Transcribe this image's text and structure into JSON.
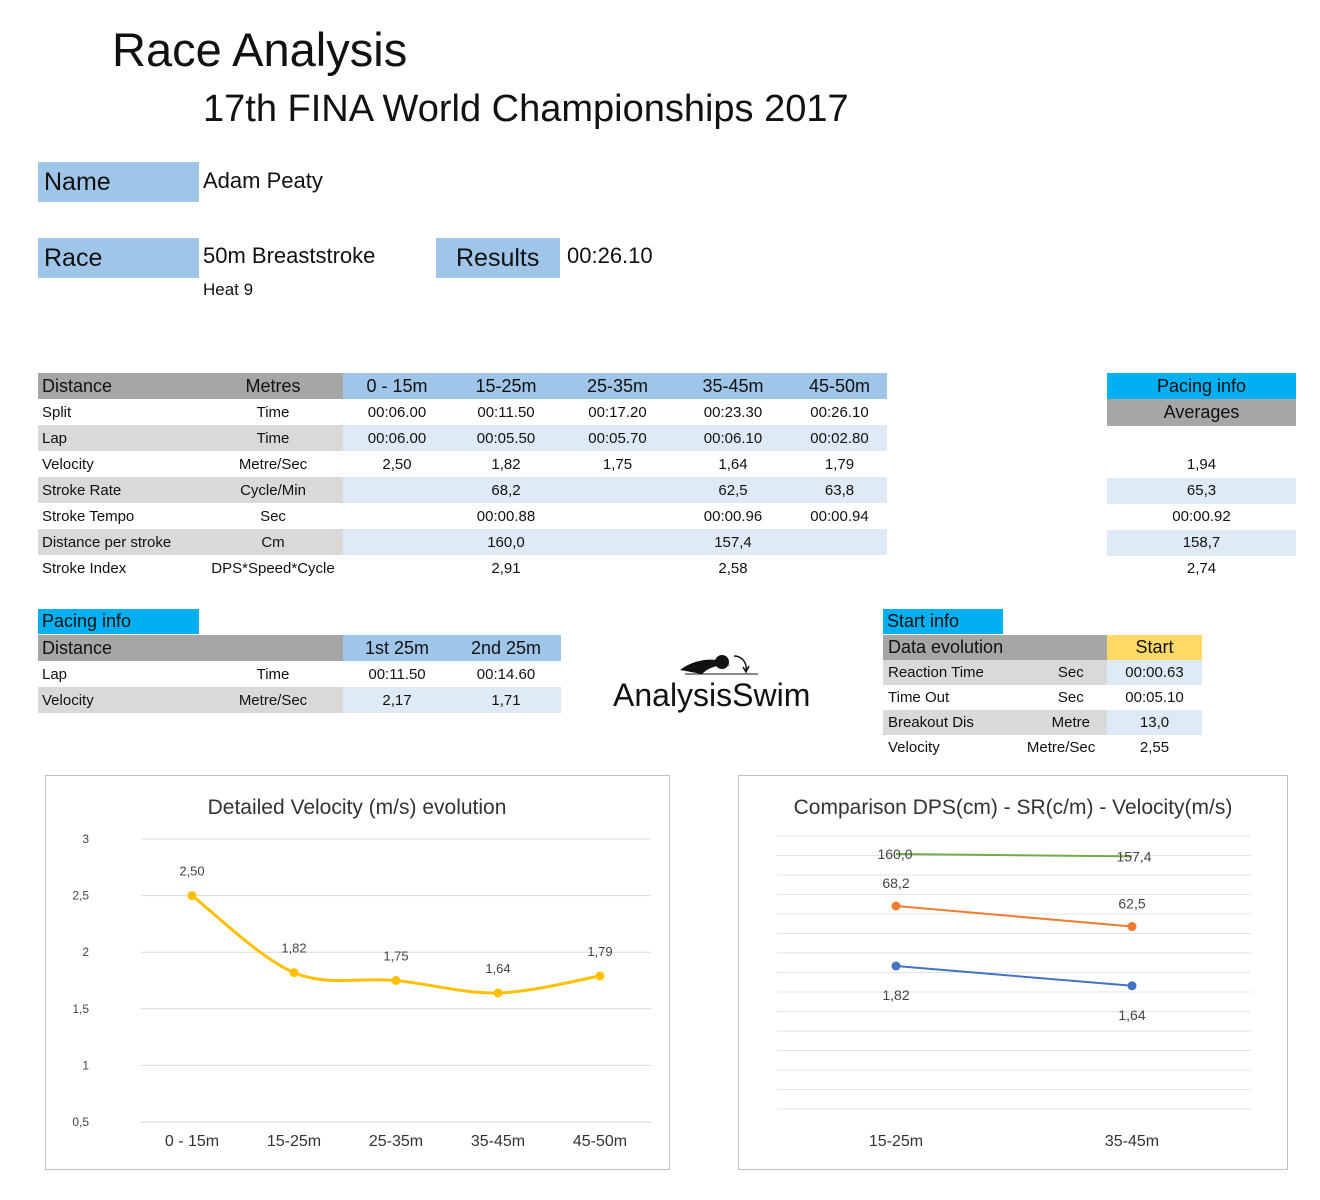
{
  "header": {
    "title": "Race Analysis",
    "subtitle": "17th FINA World Championships 2017"
  },
  "athlete": {
    "name_label": "Name",
    "name_value": "Adam Peaty",
    "race_label": "Race",
    "race_value": "50m Breaststroke",
    "heat": "Heat 9",
    "results_label": "Results",
    "results_value": "00:26.10"
  },
  "main_table": {
    "head": [
      "Distance",
      "Metres",
      "0 - 15m",
      "15-25m",
      "25-35m",
      "35-45m",
      "45-50m"
    ],
    "rows": [
      {
        "label": "Split",
        "unit": "Time",
        "values": [
          "00:06.00",
          "00:11.50",
          "00:17.20",
          "00:23.30",
          "00:26.10"
        ]
      },
      {
        "label": "Lap",
        "unit": "Time",
        "values": [
          "00:06.00",
          "00:05.50",
          "00:05.70",
          "00:06.10",
          "00:02.80"
        ]
      },
      {
        "label": "Velocity",
        "unit": "Metre/Sec",
        "values": [
          "2,50",
          "1,82",
          "1,75",
          "1,64",
          "1,79"
        ]
      },
      {
        "label": "Stroke Rate",
        "unit": "Cycle/Min",
        "values": [
          "",
          "68,2",
          "",
          "62,5",
          "63,8"
        ]
      },
      {
        "label": "Stroke Tempo",
        "unit": "Sec",
        "values": [
          "",
          "00:00.88",
          "",
          "00:00.96",
          "00:00.94"
        ]
      },
      {
        "label": "Distance per stroke",
        "unit": "Cm",
        "values": [
          "",
          "160,0",
          "",
          "157,4",
          ""
        ]
      },
      {
        "label": "Stroke Index",
        "unit": "DPS*Speed*Cycle",
        "values": [
          "",
          "2,91",
          "",
          "2,58",
          ""
        ]
      }
    ]
  },
  "averages": {
    "pacing_label": "Pacing info",
    "averages_label": "Averages",
    "values": [
      "",
      "",
      "1,94",
      "65,3",
      "00:00.92",
      "158,7",
      "2,74"
    ]
  },
  "pacing": {
    "tag": "Pacing info",
    "head": [
      "Distance",
      "",
      "1st 25m",
      "2nd 25m"
    ],
    "rows": [
      {
        "label": "Lap",
        "unit": "Time",
        "values": [
          "00:11.50",
          "00:14.60"
        ]
      },
      {
        "label": "Velocity",
        "unit": "Metre/Sec",
        "values": [
          "2,17",
          "1,71"
        ]
      }
    ]
  },
  "logo": {
    "text": "AnalysisSwim"
  },
  "start": {
    "tag": "Start info",
    "head_label": "Data evolution",
    "head_value": "Start",
    "rows": [
      {
        "label": "Reaction Time",
        "unit": "Sec",
        "value": "00:00.63"
      },
      {
        "label": "Time Out",
        "unit": "Sec",
        "value": "00:05.10"
      },
      {
        "label": "Breakout Dis",
        "unit": "Metre",
        "value": "13,0"
      },
      {
        "label": "Velocity",
        "unit": "Metre/Sec",
        "value": "2,55"
      }
    ]
  },
  "colors": {
    "velocity_line": "#ffc000",
    "dps_line": "#70ad47",
    "sr_line": "#ed7d31",
    "vel_line": "#4472c4"
  },
  "chart_data": [
    {
      "type": "line",
      "title": "Detailed Velocity (m/s)  evolution",
      "categories": [
        "0 - 15m",
        "15-25m",
        "25-35m",
        "35-45m",
        "45-50m"
      ],
      "series": [
        {
          "values": [
            2.5,
            1.82,
            1.75,
            1.64,
            1.79
          ],
          "labels": [
            "2,50",
            "1,82",
            "1,75",
            "1,64",
            "1,79"
          ]
        }
      ],
      "ylim": [
        0.5,
        3
      ],
      "yticks": [
        "0,5",
        "1",
        "1,5",
        "2",
        "2,5",
        "3"
      ],
      "grid": true,
      "smooth": true
    },
    {
      "type": "line",
      "title": "Comparison DPS(cm) - SR(c/m) - Velocity(m/s)",
      "categories": [
        "15-25m",
        "35-45m"
      ],
      "series": [
        {
          "values": [
            160.0,
            157.4
          ],
          "labels": [
            "160,0",
            "157,4"
          ]
        },
        {
          "values": [
            68.2,
            62.5
          ],
          "labels": [
            "68,2",
            "62,5"
          ]
        },
        {
          "values": [
            1.82,
            1.64
          ],
          "labels": [
            "1,82",
            "1,64"
          ]
        }
      ],
      "grid": true,
      "y_axis_labels": false
    }
  ]
}
